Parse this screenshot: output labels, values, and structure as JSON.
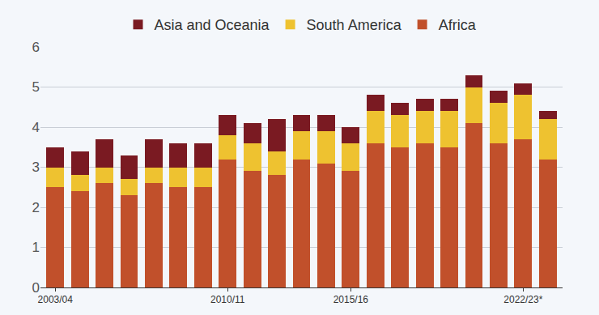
{
  "chart_data": {
    "type": "bar",
    "stacked": true,
    "categories": [
      "2003/04",
      null,
      null,
      null,
      null,
      null,
      null,
      "2010/11",
      null,
      null,
      null,
      null,
      "2015/16",
      null,
      null,
      null,
      null,
      null,
      null,
      "2022/23*",
      null
    ],
    "series": [
      {
        "name": "Africa",
        "color": "#c1502b",
        "values": [
          2.5,
          2.4,
          2.6,
          2.3,
          2.6,
          2.5,
          2.5,
          3.2,
          2.9,
          2.8,
          3.2,
          3.1,
          2.9,
          3.6,
          3.5,
          3.6,
          3.5,
          4.1,
          3.6,
          3.7,
          3.2
        ]
      },
      {
        "name": "South America",
        "color": "#eec230",
        "values": [
          0.5,
          0.4,
          0.4,
          0.4,
          0.4,
          0.5,
          0.5,
          0.6,
          0.7,
          0.6,
          0.7,
          0.8,
          0.7,
          0.8,
          0.8,
          0.8,
          0.9,
          0.9,
          1.0,
          1.1,
          1.0
        ]
      },
      {
        "name": "Asia and Oceania",
        "color": "#7a1a22",
        "values": [
          0.5,
          0.6,
          0.7,
          0.6,
          0.7,
          0.6,
          0.6,
          0.5,
          0.5,
          0.8,
          0.4,
          0.4,
          0.4,
          0.4,
          0.3,
          0.3,
          0.3,
          0.3,
          0.3,
          0.3,
          0.2
        ]
      }
    ],
    "ylim": [
      0,
      6
    ],
    "yticks": [
      0,
      1,
      2,
      3,
      4,
      5,
      6
    ],
    "grid": true,
    "legend": "top"
  }
}
